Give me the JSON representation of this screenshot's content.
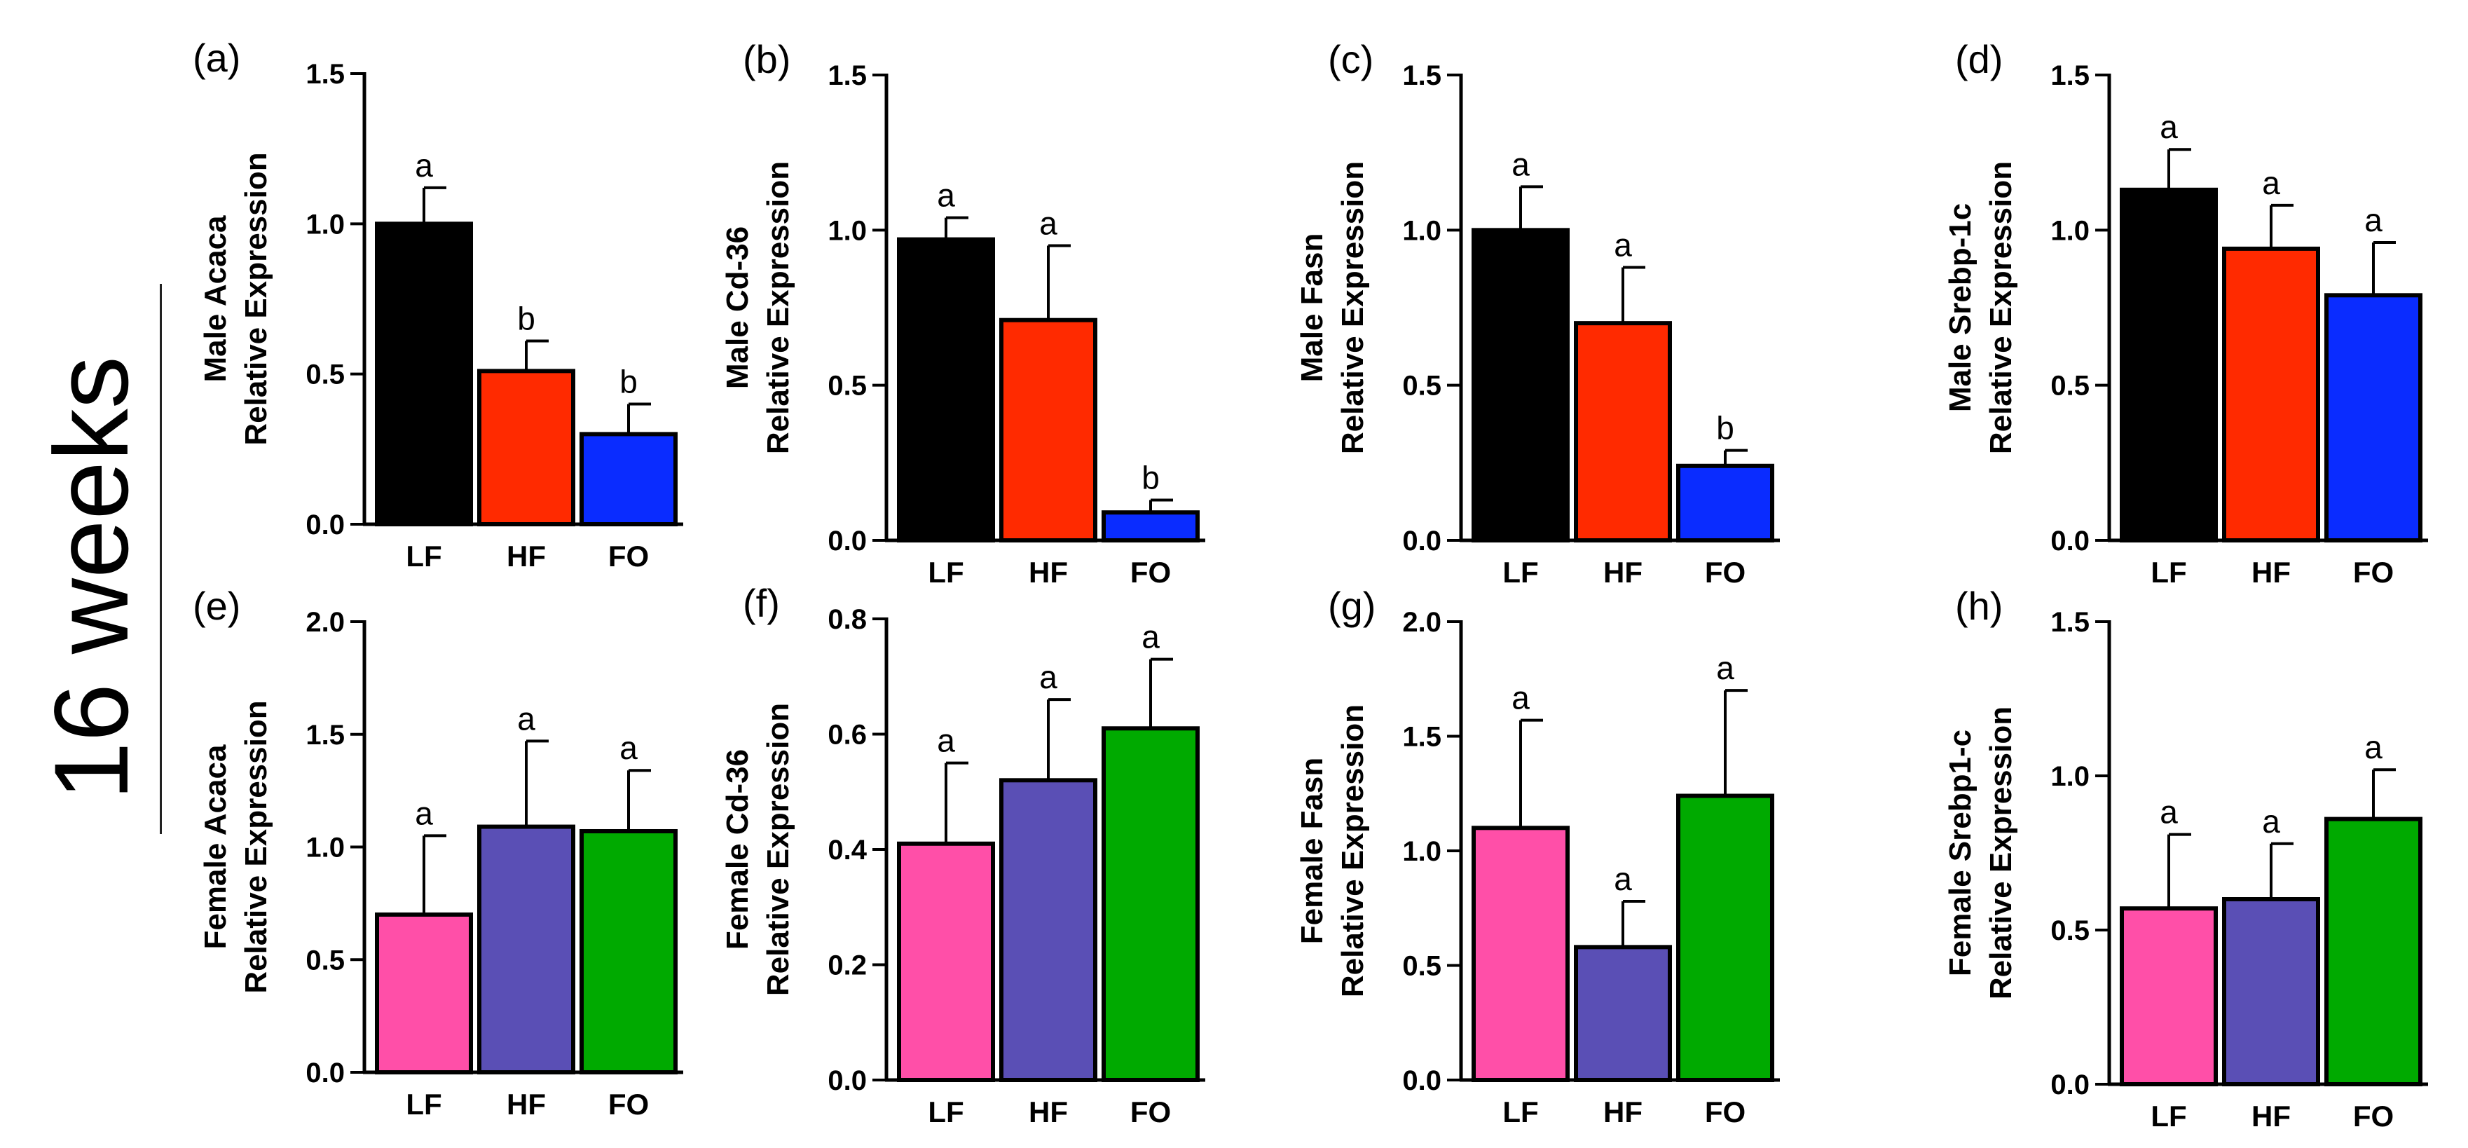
{
  "figure": {
    "time_label": "16 weeks",
    "x_axis_groups": [
      "LF",
      "HF",
      "FO"
    ]
  },
  "chart_data": [
    {
      "type": "bar",
      "panel": "(a)",
      "ylabel": [
        "Male Acaca",
        "Relative Expression"
      ],
      "categories": [
        "LF",
        "HF",
        "FO"
      ],
      "values": [
        1.0,
        0.51,
        0.3
      ],
      "errors": [
        0.12,
        0.1,
        0.1
      ],
      "letters": [
        "a",
        "b",
        "b"
      ],
      "colors": [
        "#000000",
        "#ff2a00",
        "#0a2cff"
      ],
      "ylim": [
        0,
        1.5
      ],
      "yticks": [
        "0.0",
        "0.5",
        "1.0",
        "1.5"
      ]
    },
    {
      "type": "bar",
      "panel": "(b)",
      "ylabel": [
        "Male Cd-36",
        "Relative Expression"
      ],
      "categories": [
        "LF",
        "HF",
        "FO"
      ],
      "values": [
        0.97,
        0.71,
        0.09
      ],
      "errors": [
        0.07,
        0.24,
        0.04
      ],
      "letters": [
        "a",
        "a",
        "b"
      ],
      "colors": [
        "#000000",
        "#ff2a00",
        "#0a2cff"
      ],
      "ylim": [
        0,
        1.5
      ],
      "yticks": [
        "0.0",
        "0.5",
        "1.0",
        "1.5"
      ]
    },
    {
      "type": "bar",
      "panel": "(c)",
      "ylabel": [
        "Male Fasn",
        "Relative Expression"
      ],
      "categories": [
        "LF",
        "HF",
        "FO"
      ],
      "values": [
        1.0,
        0.7,
        0.24
      ],
      "errors": [
        0.14,
        0.18,
        0.05
      ],
      "letters": [
        "a",
        "a",
        "b"
      ],
      "colors": [
        "#000000",
        "#ff2a00",
        "#0a2cff"
      ],
      "ylim": [
        0,
        1.5
      ],
      "yticks": [
        "0.0",
        "0.5",
        "1.0",
        "1.5"
      ]
    },
    {
      "type": "bar",
      "panel": "(d)",
      "ylabel": [
        "Male Srebp-1c",
        "Relative Expression"
      ],
      "categories": [
        "LF",
        "HF",
        "FO"
      ],
      "values": [
        1.13,
        0.94,
        0.79
      ],
      "errors": [
        0.13,
        0.14,
        0.17
      ],
      "letters": [
        "a",
        "a",
        "a"
      ],
      "colors": [
        "#000000",
        "#ff2a00",
        "#0a2cff"
      ],
      "ylim": [
        0,
        1.5
      ],
      "yticks": [
        "0.0",
        "0.5",
        "1.0",
        "1.5"
      ]
    },
    {
      "type": "bar",
      "panel": "(e)",
      "ylabel": [
        "Female Acaca",
        "Relative Expression"
      ],
      "categories": [
        "LF",
        "HF",
        "FO"
      ],
      "values": [
        0.7,
        1.09,
        1.07
      ],
      "errors": [
        0.35,
        0.38,
        0.27
      ],
      "letters": [
        "a",
        "a",
        "a"
      ],
      "colors": [
        "#ff4fa8",
        "#5a4fb5",
        "#00aa00"
      ],
      "ylim": [
        0,
        2.0
      ],
      "yticks": [
        "0.0",
        "0.5",
        "1.0",
        "1.5",
        "2.0"
      ]
    },
    {
      "type": "bar",
      "panel": "(f)",
      "ylabel": [
        "Female Cd-36",
        "Relative Expression"
      ],
      "categories": [
        "LF",
        "HF",
        "FO"
      ],
      "values": [
        0.41,
        0.52,
        0.61
      ],
      "errors": [
        0.14,
        0.14,
        0.12
      ],
      "letters": [
        "a",
        "a",
        "a"
      ],
      "colors": [
        "#ff4fa8",
        "#5a4fb5",
        "#00aa00"
      ],
      "ylim": [
        0,
        0.8
      ],
      "yticks": [
        "0.0",
        "0.2",
        "0.4",
        "0.6",
        "0.8"
      ]
    },
    {
      "type": "bar",
      "panel": "(g)",
      "ylabel": [
        "Female Fasn",
        "Relative Expression"
      ],
      "categories": [
        "LF",
        "HF",
        "FO"
      ],
      "values": [
        1.1,
        0.58,
        1.24
      ],
      "errors": [
        0.47,
        0.2,
        0.46
      ],
      "letters": [
        "a",
        "a",
        "a"
      ],
      "colors": [
        "#ff4fa8",
        "#5a4fb5",
        "#00aa00"
      ],
      "ylim": [
        0,
        2.0
      ],
      "yticks": [
        "0.0",
        "0.5",
        "1.0",
        "1.5",
        "2.0"
      ]
    },
    {
      "type": "bar",
      "panel": "(h)",
      "ylabel": [
        "Female Srebp1-c",
        "Relative Expression"
      ],
      "categories": [
        "LF",
        "HF",
        "FO"
      ],
      "values": [
        0.57,
        0.6,
        0.86
      ],
      "errors": [
        0.24,
        0.18,
        0.16
      ],
      "letters": [
        "a",
        "a",
        "a"
      ],
      "colors": [
        "#ff4fa8",
        "#5a4fb5",
        "#00aa00"
      ],
      "ylim": [
        0,
        1.5
      ],
      "yticks": [
        "0.0",
        "0.5",
        "1.0",
        "1.5"
      ]
    }
  ]
}
